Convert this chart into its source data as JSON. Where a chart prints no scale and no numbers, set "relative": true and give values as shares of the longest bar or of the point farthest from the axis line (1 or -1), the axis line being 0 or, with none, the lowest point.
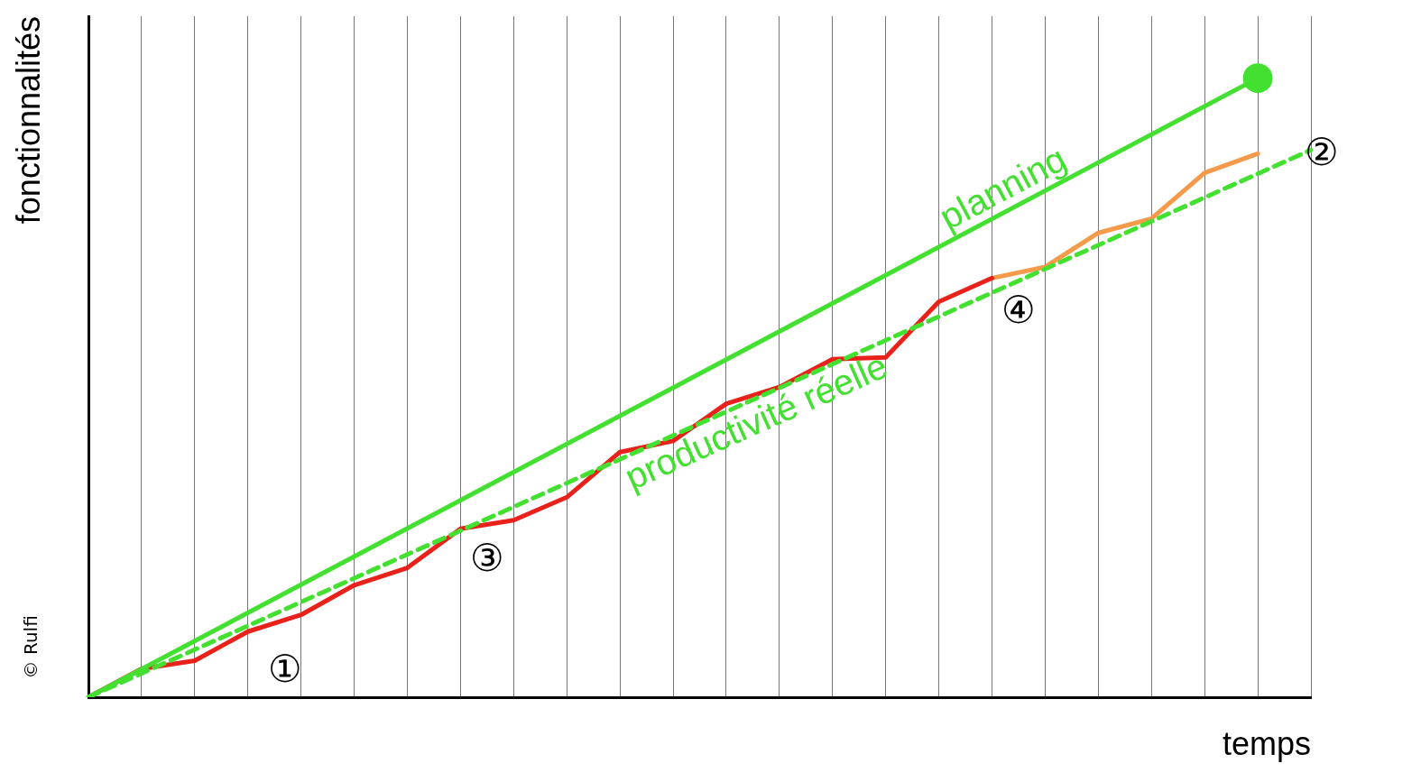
{
  "chart_data": {
    "type": "line",
    "relative": true,
    "xlabel": "temps",
    "ylabel": "fonctionnalités",
    "categories": [
      null,
      null,
      null,
      null,
      null,
      null,
      null,
      null,
      null,
      null,
      null,
      null,
      null,
      null,
      null,
      null,
      null,
      null,
      null,
      null,
      null,
      null,
      null,
      null
    ],
    "series": [
      {
        "name": "planning",
        "color": "#44e031",
        "marker": "circle",
        "values": [
          0,
          null,
          null,
          null,
          null,
          null,
          null,
          null,
          null,
          null,
          null,
          null,
          null,
          null,
          null,
          null,
          null,
          null,
          null,
          null,
          null,
          null,
          1,
          null
        ]
      },
      {
        "name": "productivité réelle",
        "color": "#44e031",
        "line_style": "dashed",
        "values": [
          0,
          null,
          null,
          null,
          null,
          null,
          null,
          null,
          null,
          null,
          null,
          null,
          null,
          null,
          null,
          null,
          null,
          null,
          null,
          null,
          null,
          null,
          null,
          0.884
        ]
      },
      {
        "color": "#e8221a",
        "values": [
          0,
          0.046,
          0.059,
          0.106,
          0.133,
          0.181,
          0.209,
          0.272,
          0.286,
          0.323,
          0.396,
          0.414,
          0.474,
          0.501,
          0.546,
          0.549,
          0.639,
          0.677,
          null,
          null,
          null,
          null,
          null,
          null
        ]
      },
      {
        "color": "#f5994a",
        "values": [
          null,
          null,
          null,
          null,
          null,
          null,
          null,
          null,
          null,
          null,
          null,
          null,
          null,
          null,
          null,
          null,
          null,
          0.677,
          0.695,
          0.75,
          0.773,
          0.847,
          0.878,
          null
        ]
      }
    ],
    "grid": "x",
    "legend": false,
    "marker": "none",
    "annotations": [
      "①",
      "②",
      "③",
      "④",
      "© Rulfi"
    ]
  }
}
